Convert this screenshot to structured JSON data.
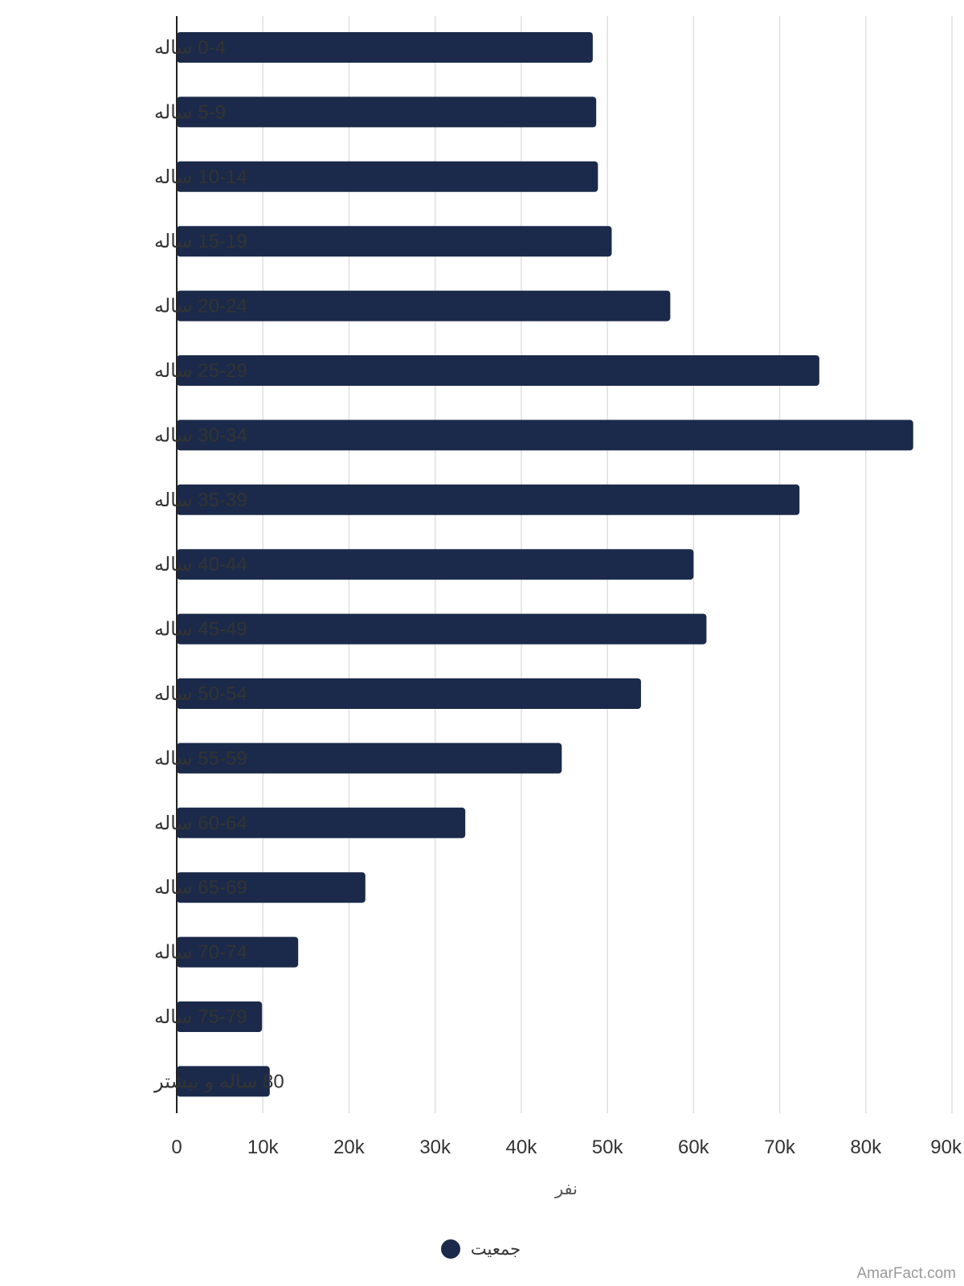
{
  "chart_data": {
    "type": "bar",
    "orientation": "horizontal",
    "categories": [
      "0-4 ساله",
      "5-9 ساله",
      "10-14 ساله",
      "15-19 ساله",
      "20-24 ساله",
      "25-29 ساله",
      "30-34 ساله",
      "35-39 ساله",
      "40-44 ساله",
      "45-49 ساله",
      "50-54 ساله",
      "55-59 ساله",
      "60-64 ساله",
      "65-69 ساله",
      "70-74 ساله",
      "75-79 ساله",
      "80 ساله و بیشتر"
    ],
    "series": [
      {
        "name": "جمعیت",
        "color": "#1b2a4a",
        "values": [
          48300,
          48700,
          48900,
          50500,
          57300,
          74600,
          85500,
          72300,
          60000,
          61500,
          53900,
          44700,
          33500,
          21900,
          14100,
          9900,
          10800
        ]
      }
    ],
    "x_ticks": [
      "0",
      "10k",
      "20k",
      "30k",
      "40k",
      "50k",
      "60k",
      "70k",
      "80k",
      "90k"
    ],
    "xlim": [
      0,
      90000
    ],
    "xlabel": "نفر",
    "ylabel": "",
    "title": "",
    "grid": true,
    "legend_position": "bottom-center",
    "grid_color": "#e0e0e0",
    "axis_color": "#222222"
  },
  "watermark": "AmarFact.com"
}
